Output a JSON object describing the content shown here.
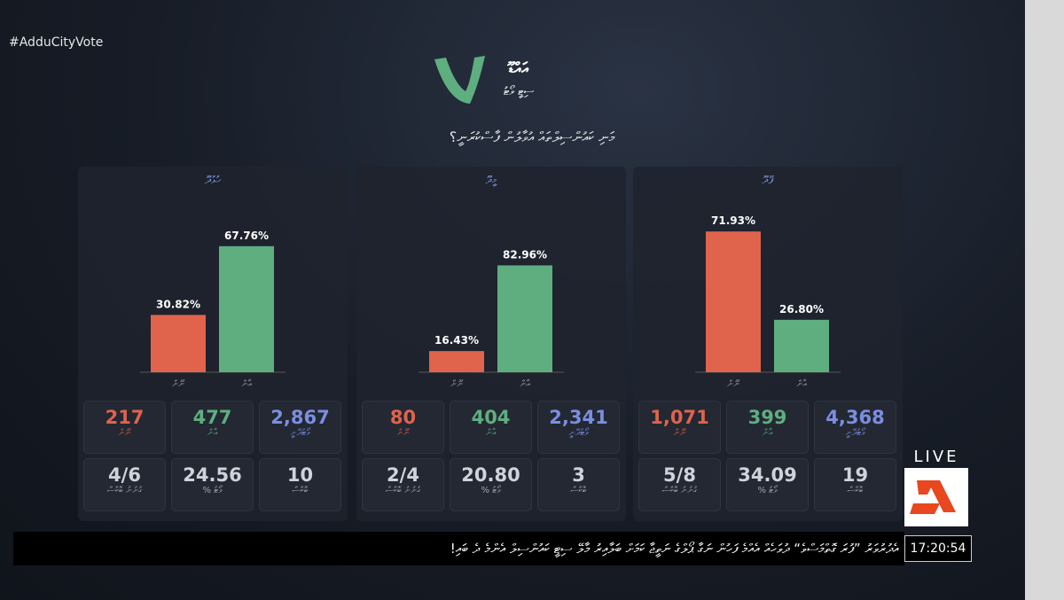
{
  "hashtag": "#AdduCityVote",
  "logo": {
    "line1": "އައްޑޫ",
    "line2": "ސިޓީ ވޯޓު"
  },
  "question": "މަނި ކައުންސިލްތައް އުވާލުން ފާސްކުރަނީ؟",
  "chart_data": [
    {
      "type": "bar",
      "title": "ހުޅުދޫ",
      "categories": [
        "ނޫން",
        "އާން"
      ],
      "values": [
        30.82,
        67.76
      ],
      "value_labels": [
        "30.82%",
        "67.76%"
      ],
      "colors": [
        "#e0634c",
        "#5fae80"
      ],
      "ylim": [
        0,
        81
      ]
    },
    {
      "type": "bar",
      "title": "މީދޫ",
      "categories": [
        "ނޫން",
        "އާން"
      ],
      "values": [
        16.43,
        82.96
      ],
      "value_labels": [
        "16.43%",
        "82.96%"
      ],
      "colors": [
        "#e0634c",
        "#5fae80"
      ],
      "ylim": [
        0,
        117
      ]
    },
    {
      "type": "bar",
      "title": "ފޭދޫ",
      "categories": [
        "ނޫން",
        "އާން"
      ],
      "values": [
        71.93,
        26.8
      ],
      "value_labels": [
        "71.93%",
        "26.80%"
      ],
      "colors": [
        "#e0634c",
        "#5fae80"
      ],
      "ylim": [
        0,
        77
      ]
    }
  ],
  "panels": [
    {
      "stats": [
        [
          "217",
          "ނޫން"
        ],
        [
          "477",
          "އާން"
        ],
        [
          "2,867",
          "ވޯޓުދޭނީ"
        ],
        [
          "4/6",
          "ގުނުނު ބޮކްސް"
        ],
        [
          "24.56",
          "ވޯޓު %"
        ],
        [
          "10",
          "ބޮކްސް"
        ]
      ]
    },
    {
      "stats": [
        [
          "80",
          "ނޫން"
        ],
        [
          "404",
          "އާން"
        ],
        [
          "2,341",
          "ވޯޓުދޭނީ"
        ],
        [
          "2/4",
          "ގުނުނު ބޮކްސް"
        ],
        [
          "20.80",
          "ވޯޓު %"
        ],
        [
          "3",
          "ބޮކްސް"
        ]
      ]
    },
    {
      "stats": [
        [
          "1,071",
          "ނޫން"
        ],
        [
          "399",
          "އާން"
        ],
        [
          "4,368",
          "ވޯޓުދޭނީ"
        ],
        [
          "5/8",
          "ގުނުނު ބޮކްސް"
        ],
        [
          "34.09",
          "ވޯޓު %"
        ],
        [
          "19",
          "ބޮކްސް"
        ]
      ]
    }
  ],
  "stat_colors": [
    "#e0634c",
    "#5fae80",
    "#7b8ee0",
    "#cfd3da",
    "#cfd3da",
    "#cfd3da"
  ],
  "live": "LIVE",
  "time": "17:20:54",
  "ticker": "އެދުރުވަރު ”ފުރަ ގޮތްމަސްވެ“ ދުވަހެއް އެއްމެ ފަހުން ނަގާ ޕޯލްގެ ނަތީޖާ ކަމަށް ބަލާއިރު މާލޭ ސިޓީ ކައުންސިލް އެންމެ ދެ ބައި!"
}
